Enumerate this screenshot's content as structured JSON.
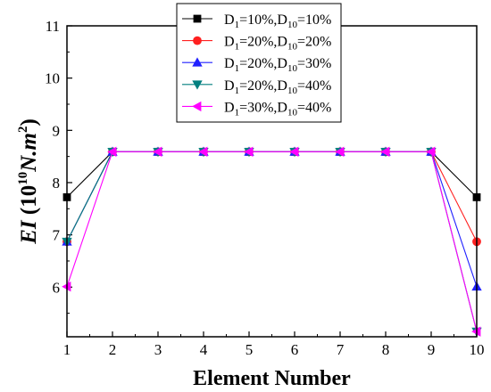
{
  "chart_data": {
    "type": "line",
    "title": "",
    "xlabel": "Element Number",
    "ylabel": {
      "main": "EI",
      "open": " (10",
      "exp": "10",
      "unit": "N.m",
      "unit_exp": "2",
      "close": ")"
    },
    "x": [
      1,
      2,
      3,
      4,
      5,
      6,
      7,
      8,
      9,
      10
    ],
    "xticks": [
      "1",
      "2",
      "3",
      "4",
      "5",
      "6",
      "7",
      "8",
      "9",
      "10"
    ],
    "yticks": [
      "6",
      "7",
      "8",
      "9",
      "10",
      "11"
    ],
    "xlim": [
      1,
      10
    ],
    "ylim": [
      5.05,
      11
    ],
    "grid": false,
    "legend_position": "top-center",
    "series": [
      {
        "label": {
          "p1": "D",
          "s1": "1",
          "p2": "=10%,D",
          "s2": "10",
          "p3": "=10%"
        },
        "color": "#000000",
        "marker": "square",
        "values": [
          7.72,
          8.59,
          8.59,
          8.59,
          8.59,
          8.59,
          8.59,
          8.59,
          8.59,
          7.72
        ]
      },
      {
        "label": {
          "p1": "D",
          "s1": "1",
          "p2": "=20%,D",
          "s2": "10",
          "p3": "=20%"
        },
        "color": "#ff2020",
        "marker": "circle",
        "values": [
          6.87,
          8.59,
          8.59,
          8.59,
          8.59,
          8.59,
          8.59,
          8.59,
          8.59,
          6.87
        ]
      },
      {
        "label": {
          "p1": "D",
          "s1": "1",
          "p2": "=20%,D",
          "s2": "10",
          "p3": "=30%"
        },
        "color": "#2020ff",
        "marker": "triangle-up",
        "values": [
          6.87,
          8.59,
          8.59,
          8.59,
          8.59,
          8.59,
          8.59,
          8.59,
          8.59,
          6.01
        ]
      },
      {
        "label": {
          "p1": "D",
          "s1": "1",
          "p2": "=20%,D",
          "s2": "10",
          "p3": "=40%"
        },
        "color": "#007f7f",
        "marker": "triangle-down",
        "values": [
          6.87,
          8.59,
          8.59,
          8.59,
          8.59,
          8.59,
          8.59,
          8.59,
          8.59,
          5.15
        ]
      },
      {
        "label": {
          "p1": "D",
          "s1": "1",
          "p2": "=30%,D",
          "s2": "10",
          "p3": "=40%"
        },
        "color": "#ff00ff",
        "marker": "triangle-left",
        "values": [
          6.01,
          8.59,
          8.59,
          8.59,
          8.59,
          8.59,
          8.59,
          8.59,
          8.59,
          5.15
        ]
      }
    ]
  }
}
